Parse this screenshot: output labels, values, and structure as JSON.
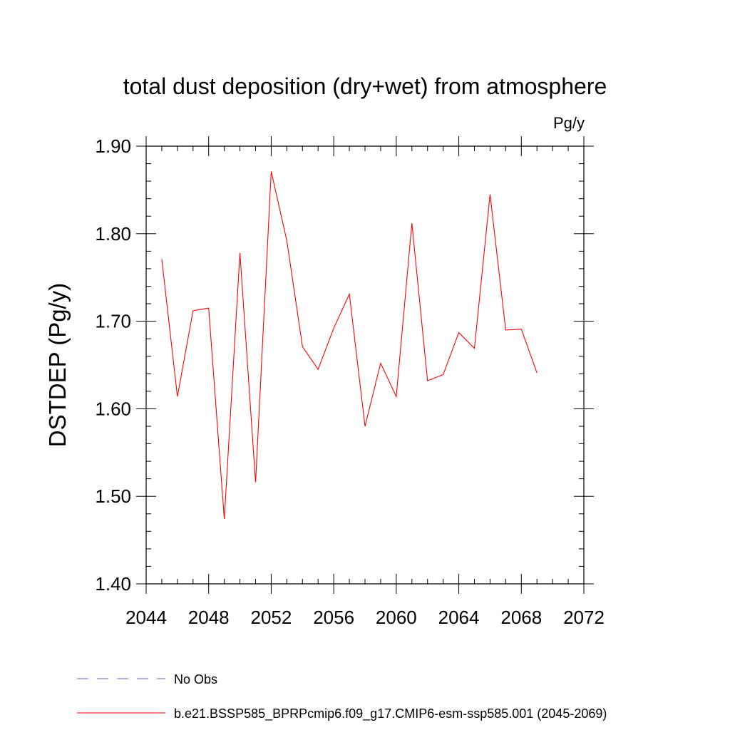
{
  "chart_data": {
    "type": "line",
    "title": "total dust deposition (dry+wet) from atmosphere",
    "units": "Pg/y",
    "ylabel": "DSTDEP  (Pg/y)",
    "xlabel": "",
    "xlim": [
      2044,
      2072
    ],
    "ylim": [
      1.4,
      1.9
    ],
    "x_ticks": [
      2044,
      2048,
      2052,
      2056,
      2060,
      2064,
      2068,
      2072
    ],
    "y_ticks": [
      1.4,
      1.5,
      1.6,
      1.7,
      1.8,
      1.9
    ],
    "y_tick_labels": [
      "1.40",
      "1.50",
      "1.60",
      "1.70",
      "1.80",
      "1.90"
    ],
    "grid": false,
    "legend_position": "bottom",
    "legend": [
      {
        "label": "No Obs",
        "color": "#6a5acd",
        "style": "dashed"
      },
      {
        "label": "b.e21.BSSP585_BPRPcmip6.f09_g17.CMIP6-esm-ssp585.001 (2045-2069)",
        "color": "#ff0000",
        "style": "solid"
      }
    ],
    "series": [
      {
        "name": "b.e21.BSSP585_BPRPcmip6.f09_g17.CMIP6-esm-ssp585.001 (2045-2069)",
        "color": "#ff0000",
        "x": [
          2045,
          2046,
          2047,
          2048,
          2049,
          2050,
          2051,
          2052,
          2053,
          2054,
          2055,
          2056,
          2057,
          2058,
          2059,
          2060,
          2061,
          2062,
          2063,
          2064,
          2065,
          2066,
          2067,
          2068,
          2069
        ],
        "values": [
          1.771,
          1.614,
          1.712,
          1.715,
          1.474,
          1.778,
          1.516,
          1.871,
          1.792,
          1.671,
          1.645,
          1.692,
          1.731,
          1.58,
          1.652,
          1.614,
          1.812,
          1.632,
          1.639,
          1.687,
          1.669,
          1.845,
          1.69,
          1.691,
          1.641
        ]
      }
    ]
  }
}
